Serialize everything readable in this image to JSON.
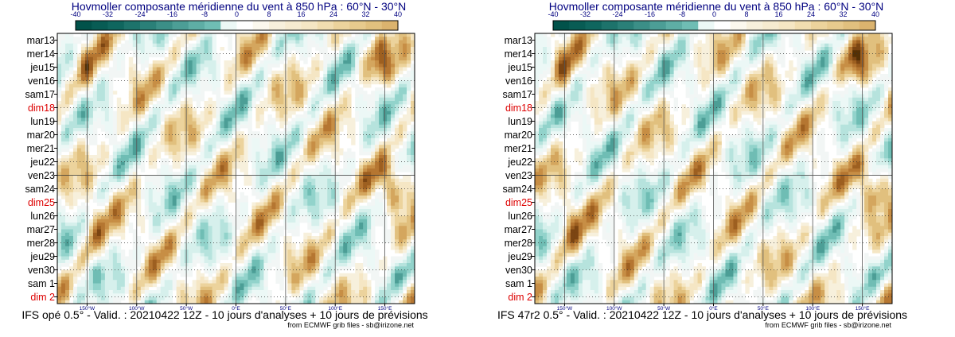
{
  "chart_data": [
    {
      "type": "heatmap",
      "title": "Hovmoller composante méridienne du vent à 850 hPa : 60°N - 30°N",
      "footer": "IFS opé 0.5° - Valid. : 20210422 12Z - 10 jours d'analyses + 10 jours de prévisions",
      "credit": "from ECMWF grib files - sb@irizone.net",
      "colorbar": {
        "ticks": [
          "-40",
          "-32",
          "-24",
          "-16",
          "-8",
          "0",
          "8",
          "16",
          "24",
          "32",
          "40"
        ],
        "range": [
          -40,
          40
        ],
        "step": 4
      },
      "xaxis": {
        "range": [
          -180,
          180
        ],
        "ticks": [
          {
            "value": -150,
            "label": "150°W"
          },
          {
            "value": -100,
            "label": "100°W"
          },
          {
            "value": -50,
            "label": "50°W"
          },
          {
            "value": 0,
            "label": "0°E"
          },
          {
            "value": 50,
            "label": "50°E"
          },
          {
            "value": 100,
            "label": "100°E"
          },
          {
            "value": 150,
            "label": "150°E"
          }
        ]
      },
      "yaxis": {
        "labels": [
          "mar13",
          "mer14",
          "jeu15",
          "ven16",
          "sam17",
          "dim18",
          "lun19",
          "mar20",
          "mer21",
          "jeu22",
          "ven23",
          "sam24",
          "dim25",
          "lun26",
          "mar27",
          "mer28",
          "jeu29",
          "ven30",
          "sam 1",
          "dim 2"
        ],
        "weekend_labels": [
          "dim18",
          "dim25",
          "dim 2"
        ],
        "analysis_forecast_separator": "ven23"
      }
    },
    {
      "type": "heatmap",
      "title": "Hovmoller composante méridienne du vent à 850 hPa : 60°N - 30°N",
      "footer": "IFS 47r2 0.5° - Valid. : 20210422 12Z - 10 jours d'analyses + 10 jours de prévisions",
      "credit": "from ECMWF grib files - sb@irizone.net",
      "colorbar": {
        "ticks": [
          "-40",
          "-32",
          "-24",
          "-16",
          "-8",
          "0",
          "8",
          "16",
          "24",
          "32",
          "40"
        ],
        "range": [
          -40,
          40
        ],
        "step": 4
      },
      "xaxis": {
        "range": [
          -180,
          180
        ],
        "ticks": [
          {
            "value": -150,
            "label": "150°W"
          },
          {
            "value": -100,
            "label": "100°W"
          },
          {
            "value": -50,
            "label": "50°W"
          },
          {
            "value": 0,
            "label": "0°E"
          },
          {
            "value": 50,
            "label": "50°E"
          },
          {
            "value": 100,
            "label": "100°E"
          },
          {
            "value": 150,
            "label": "150°E"
          }
        ]
      },
      "yaxis": {
        "labels": [
          "mar13",
          "mer14",
          "jeu15",
          "ven16",
          "sam17",
          "dim18",
          "lun19",
          "mar20",
          "mer21",
          "jeu22",
          "ven23",
          "sam24",
          "dim25",
          "lun26",
          "mar27",
          "mer28",
          "jeu29",
          "ven30",
          "sam 1",
          "dim 2"
        ],
        "weekend_labels": [
          "dim18",
          "dim25",
          "dim 2"
        ],
        "analysis_forecast_separator": "ven23"
      }
    }
  ],
  "colors": {
    "palette": [
      "#01524a",
      "#0f665e",
      "#2a8078",
      "#4c9e96",
      "#6fbdb4",
      "#92d3cb",
      "#b6e3dd",
      "#d6f0ec",
      "#ecf8f6",
      "#f5f5f5",
      "#ffffff",
      "#f7f0dc",
      "#f5e6c4",
      "#ecd39c",
      "#e1c07e",
      "#d4a65e",
      "#c78e45",
      "#b57631",
      "#9d5f20",
      "#7b4513",
      "#543005"
    ],
    "title_text": "#000080",
    "weekend_text": "#dd0000",
    "axis_text": "#000080"
  }
}
